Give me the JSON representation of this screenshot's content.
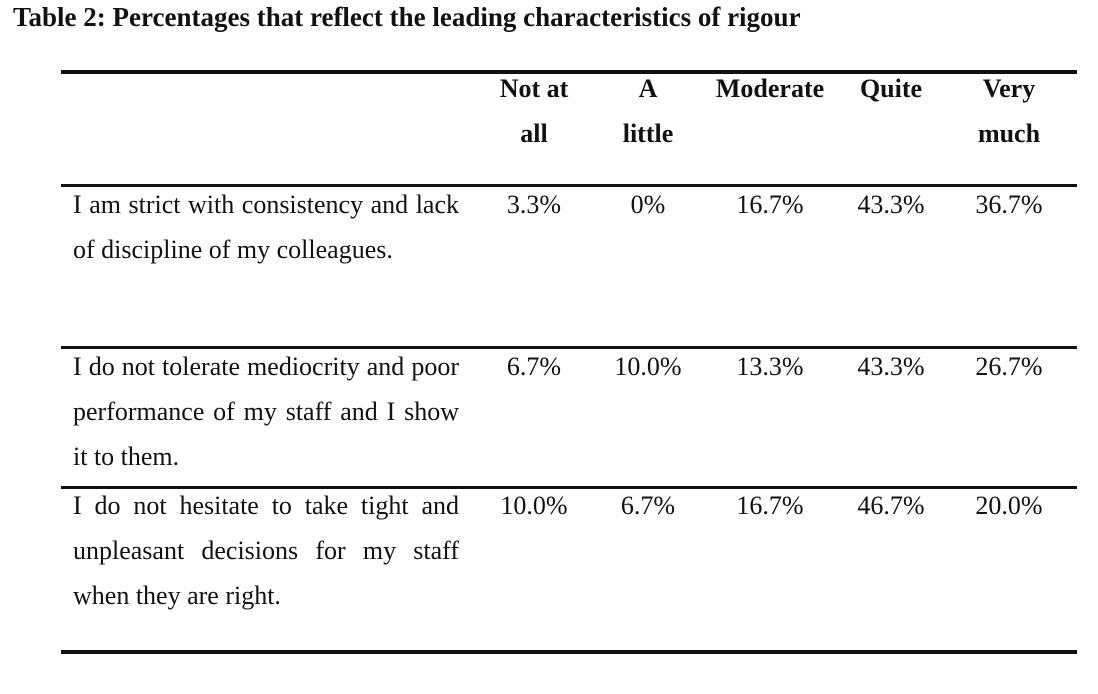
{
  "table": {
    "caption": "Table 2: Percentages that reflect the leading characteristics of rigour",
    "columns": [
      "Not at\nall",
      "A\nlittle",
      "Moderate",
      "Quite",
      "Very\nmuch"
    ],
    "rows": [
      {
        "statement": "I am strict with consistency and lack of discipline of my colleagues.",
        "values": [
          "3.3%",
          "0%",
          "16.7%",
          "43.3%",
          "36.7%"
        ]
      },
      {
        "statement": "I do not tolerate mediocrity and poor performance of my staff and I show it to them.",
        "values": [
          "6.7%",
          "10.0%",
          "13.3%",
          "43.3%",
          "26.7%"
        ]
      },
      {
        "statement": "I do not hesitate to take tight and unpleasant decisions for my staff when they are right.",
        "values": [
          "10.0%",
          "6.7%",
          "16.7%",
          "46.7%",
          "20.0%"
        ]
      }
    ]
  }
}
